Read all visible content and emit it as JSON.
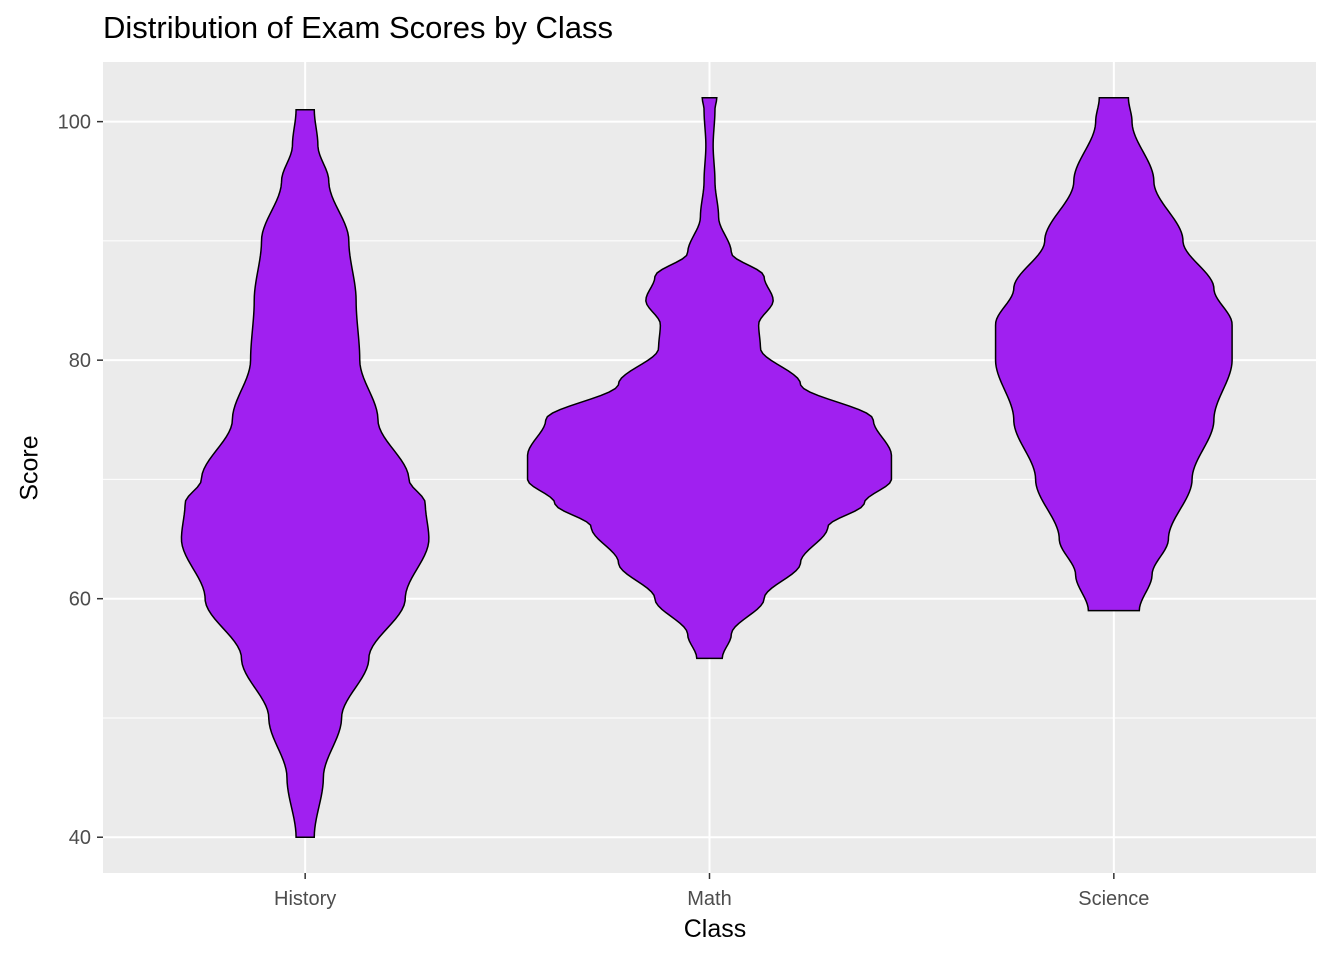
{
  "chart_data": {
    "type": "violin",
    "title": "Distribution of Exam Scores by Class",
    "xlabel": "Class",
    "ylabel": "Score",
    "categories": [
      "History",
      "Math",
      "Science"
    ],
    "ylim": [
      37,
      105
    ],
    "yticks": [
      40,
      60,
      80,
      100
    ],
    "ytick_labels": [
      "40",
      "60",
      "80",
      "100"
    ],
    "grid": true,
    "fill_color": "#A020F0",
    "outline_color": "#000000",
    "panel_color": "#EBEBEB",
    "grid_color": "#FFFFFF",
    "series": [
      {
        "category": "History",
        "range": [
          40,
          101
        ],
        "density_width": [
          [
            40,
            0.05
          ],
          [
            45,
            0.1
          ],
          [
            50,
            0.2
          ],
          [
            55,
            0.35
          ],
          [
            60,
            0.55
          ],
          [
            65,
            0.68
          ],
          [
            68,
            0.66
          ],
          [
            70,
            0.57
          ],
          [
            75,
            0.4
          ],
          [
            80,
            0.3
          ],
          [
            85,
            0.28
          ],
          [
            90,
            0.24
          ],
          [
            95,
            0.13
          ],
          [
            98,
            0.07
          ],
          [
            101,
            0.05
          ]
        ]
      },
      {
        "category": "Math",
        "range": [
          55,
          102
        ],
        "density_width": [
          [
            55,
            0.07
          ],
          [
            57,
            0.12
          ],
          [
            60,
            0.3
          ],
          [
            63,
            0.5
          ],
          [
            66,
            0.65
          ],
          [
            68,
            0.85
          ],
          [
            70,
            1.0
          ],
          [
            72,
            1.0
          ],
          [
            75,
            0.9
          ],
          [
            78,
            0.5
          ],
          [
            81,
            0.28
          ],
          [
            83,
            0.27
          ],
          [
            85,
            0.35
          ],
          [
            87,
            0.3
          ],
          [
            89,
            0.12
          ],
          [
            92,
            0.05
          ],
          [
            95,
            0.03
          ],
          [
            98,
            0.02
          ],
          [
            101,
            0.03
          ],
          [
            102,
            0.04
          ]
        ]
      },
      {
        "category": "Science",
        "range": [
          59,
          102
        ],
        "density_width": [
          [
            59,
            0.14
          ],
          [
            62,
            0.21
          ],
          [
            65,
            0.3
          ],
          [
            70,
            0.43
          ],
          [
            75,
            0.55
          ],
          [
            80,
            0.65
          ],
          [
            83,
            0.65
          ],
          [
            86,
            0.55
          ],
          [
            90,
            0.38
          ],
          [
            95,
            0.22
          ],
          [
            100,
            0.1
          ],
          [
            102,
            0.08
          ]
        ]
      }
    ]
  }
}
